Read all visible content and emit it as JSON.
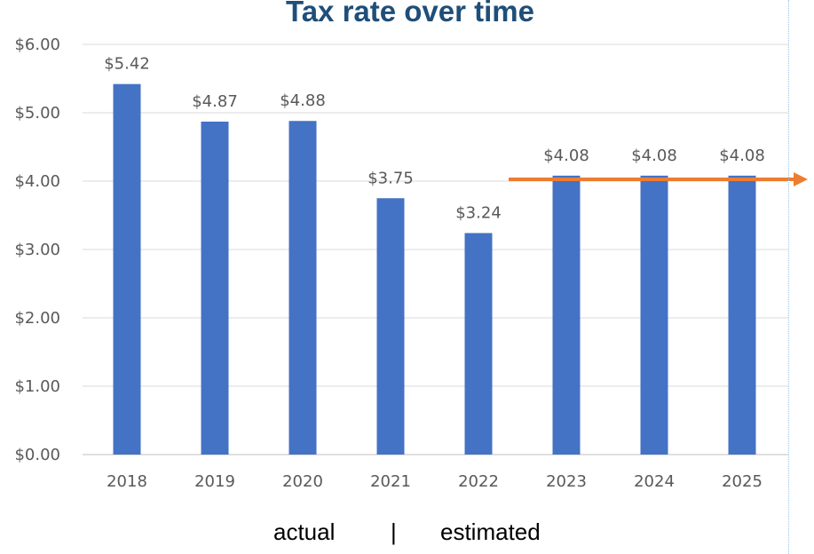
{
  "chart_data": {
    "type": "bar",
    "title": "Tax rate over time",
    "categories": [
      "2018",
      "2019",
      "2020",
      "2021",
      "2022",
      "2023",
      "2024",
      "2025"
    ],
    "values": [
      5.42,
      4.87,
      4.88,
      3.75,
      3.24,
      4.08,
      4.08,
      4.08
    ],
    "value_labels": [
      "$5.42",
      "$4.87",
      "$4.88",
      "$3.75",
      "$3.24",
      "$4.08",
      "$4.08",
      "$4.08"
    ],
    "yticks": [
      "$0.00",
      "$1.00",
      "$2.00",
      "$3.00",
      "$4.00",
      "$5.00",
      "$6.00"
    ],
    "ylim": [
      0,
      6
    ],
    "grid": true,
    "bar_color": "#4472c4",
    "annotation": {
      "type": "arrow",
      "value": 4.0,
      "from_category": "2023",
      "color": "#ed7d31"
    }
  },
  "footer": {
    "left": "actual",
    "separator": "|",
    "right": "estimated"
  }
}
